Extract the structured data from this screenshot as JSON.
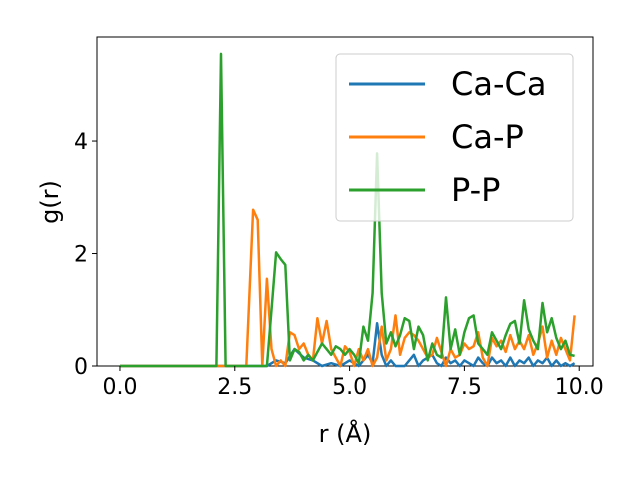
{
  "chart_data": {
    "type": "line",
    "title": "",
    "xlabel": "r (Å)",
    "ylabel": "g(r)",
    "xlim": [
      -0.5,
      10.3
    ],
    "ylim": [
      0,
      5.85
    ],
    "xticks": [
      0.0,
      2.5,
      5.0,
      7.5,
      10.0
    ],
    "xtick_labels": [
      "0.0",
      "2.5",
      "5.0",
      "7.5",
      "10.0"
    ],
    "yticks": [
      0,
      2,
      4
    ],
    "ytick_labels": [
      "0",
      "2",
      "4"
    ],
    "grid": false,
    "legend_position": "top-right",
    "series": [
      {
        "name": "Ca-Ca",
        "color": "#1f77b4",
        "x": [
          0.0,
          3.2,
          3.4,
          3.6,
          3.8,
          4.0,
          4.2,
          4.4,
          4.6,
          4.8,
          5.0,
          5.2,
          5.4,
          5.5,
          5.6,
          5.7,
          5.8,
          5.9,
          6.0,
          6.2,
          6.4,
          6.5,
          6.6,
          6.8,
          6.9,
          7.0,
          7.1,
          7.2,
          7.3,
          7.4,
          7.5,
          7.6,
          7.7,
          7.8,
          7.9,
          8.0,
          8.1,
          8.2,
          8.3,
          8.4,
          8.5,
          8.6,
          8.7,
          8.8,
          8.9,
          9.0,
          9.1,
          9.2,
          9.3,
          9.4,
          9.5,
          9.6,
          9.7,
          9.8,
          9.9
        ],
        "y": [
          0.0,
          0.0,
          0.1,
          0.05,
          0.3,
          0.15,
          0.1,
          0.0,
          0.05,
          0.0,
          0.1,
          0.0,
          0.2,
          0.05,
          0.76,
          0.2,
          0.0,
          0.1,
          0.0,
          0.0,
          0.2,
          0.0,
          0.1,
          0.2,
          0.05,
          0.0,
          0.15,
          0.05,
          0.1,
          0.0,
          0.1,
          0.05,
          0.0,
          0.15,
          0.05,
          0.0,
          0.15,
          0.05,
          0.1,
          0.0,
          0.15,
          0.0,
          0.1,
          0.05,
          0.15,
          0.0,
          0.1,
          0.05,
          0.15,
          0.0,
          0.1,
          0.0,
          0.05,
          0.0,
          0.05
        ]
      },
      {
        "name": "Ca-P",
        "color": "#ff7f0e",
        "x": [
          0.0,
          2.75,
          2.9,
          3.0,
          3.1,
          3.2,
          3.3,
          3.4,
          3.5,
          3.6,
          3.7,
          3.8,
          3.9,
          4.0,
          4.1,
          4.2,
          4.3,
          4.4,
          4.5,
          4.6,
          4.7,
          4.8,
          4.9,
          5.0,
          5.1,
          5.2,
          5.3,
          5.4,
          5.5,
          5.6,
          5.7,
          5.8,
          5.9,
          6.0,
          6.1,
          6.2,
          6.3,
          6.4,
          6.5,
          6.6,
          6.7,
          6.8,
          6.9,
          7.0,
          7.1,
          7.2,
          7.3,
          7.4,
          7.5,
          7.6,
          7.7,
          7.8,
          7.9,
          8.0,
          8.1,
          8.2,
          8.3,
          8.4,
          8.5,
          8.6,
          8.7,
          8.8,
          8.9,
          9.0,
          9.1,
          9.2,
          9.3,
          9.4,
          9.5,
          9.6,
          9.7,
          9.8,
          9.9
        ],
        "y": [
          0.0,
          0.0,
          2.78,
          2.6,
          0.0,
          1.55,
          0.3,
          0.0,
          0.1,
          0.0,
          0.6,
          0.55,
          0.3,
          0.4,
          0.2,
          0.1,
          0.85,
          0.4,
          0.8,
          0.3,
          0.15,
          0.0,
          0.35,
          0.25,
          0.0,
          0.3,
          0.1,
          0.3,
          0.0,
          0.15,
          0.7,
          0.1,
          0.3,
          0.9,
          0.2,
          0.5,
          0.6,
          0.55,
          0.45,
          0.3,
          0.15,
          0.2,
          0.5,
          0.25,
          0.0,
          0.3,
          0.15,
          0.2,
          0.4,
          0.3,
          0.35,
          0.6,
          0.15,
          0.0,
          0.5,
          0.35,
          0.45,
          0.25,
          0.55,
          0.3,
          0.45,
          0.3,
          0.55,
          0.2,
          0.4,
          0.7,
          0.15,
          0.45,
          0.2,
          0.5,
          0.3,
          0.1,
          0.9
        ]
      },
      {
        "name": "P-P",
        "color": "#2ca02c",
        "x": [
          0.0,
          2.1,
          2.2,
          2.3,
          2.4,
          3.2,
          3.3,
          3.4,
          3.5,
          3.6,
          3.7,
          3.8,
          3.9,
          4.0,
          4.1,
          4.2,
          4.3,
          4.4,
          4.5,
          4.6,
          4.7,
          4.8,
          4.9,
          5.0,
          5.1,
          5.2,
          5.3,
          5.4,
          5.5,
          5.6,
          5.7,
          5.8,
          5.9,
          6.0,
          6.1,
          6.2,
          6.3,
          6.4,
          6.5,
          6.6,
          6.7,
          6.8,
          6.9,
          7.0,
          7.1,
          7.2,
          7.3,
          7.4,
          7.5,
          7.6,
          7.7,
          7.8,
          7.9,
          8.0,
          8.1,
          8.2,
          8.3,
          8.4,
          8.5,
          8.6,
          8.7,
          8.8,
          8.9,
          9.0,
          9.1,
          9.2,
          9.3,
          9.4,
          9.5,
          9.6,
          9.7,
          9.8,
          9.9
        ],
        "y": [
          0.0,
          0.0,
          5.55,
          0.0,
          0.0,
          0.0,
          1.0,
          2.02,
          1.9,
          1.8,
          0.1,
          0.3,
          0.25,
          0.1,
          0.2,
          0.1,
          0.25,
          0.4,
          0.3,
          0.2,
          0.35,
          0.3,
          0.2,
          0.3,
          0.2,
          0.05,
          0.7,
          0.45,
          1.3,
          3.78,
          1.3,
          0.4,
          0.6,
          0.35,
          0.55,
          0.85,
          0.8,
          0.3,
          0.7,
          0.55,
          0.1,
          0.4,
          0.2,
          0.15,
          1.22,
          0.3,
          0.65,
          0.2,
          0.6,
          0.85,
          0.9,
          0.4,
          0.3,
          0.2,
          0.6,
          0.45,
          0.3,
          0.55,
          0.75,
          0.8,
          0.4,
          1.17,
          0.65,
          0.45,
          0.3,
          1.12,
          0.6,
          0.85,
          0.5,
          0.3,
          0.45,
          0.2,
          0.18
        ]
      }
    ]
  }
}
